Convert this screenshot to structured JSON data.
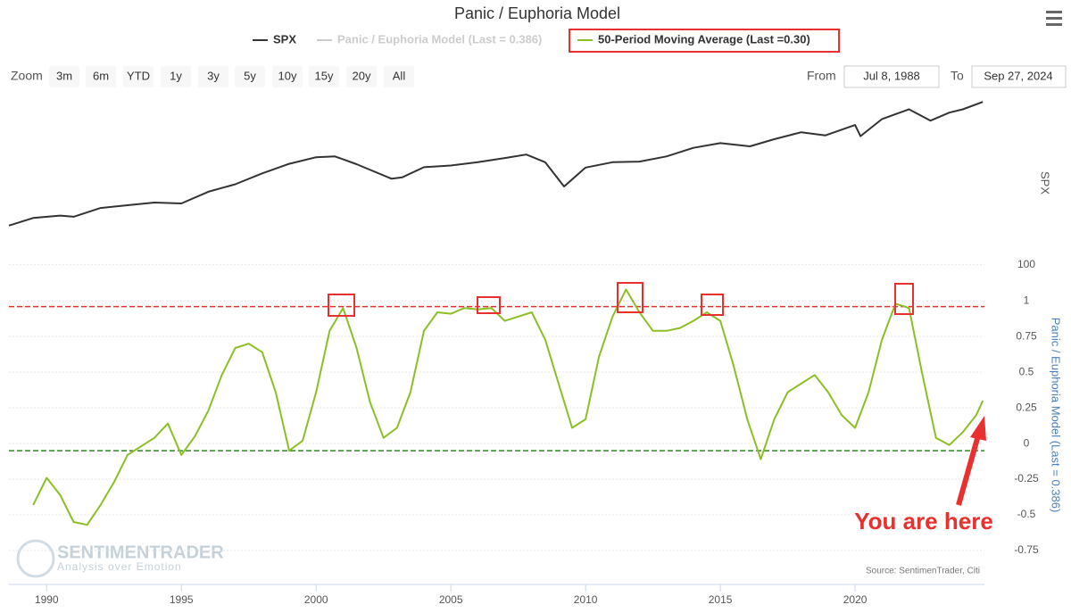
{
  "title": "Panic / Euphoria Model",
  "controls": {
    "zoom_label": "Zoom",
    "zoom_buttons": [
      "3m",
      "6m",
      "YTD",
      "1y",
      "3y",
      "5y",
      "10y",
      "15y",
      "20y",
      "All"
    ],
    "from_label": "From",
    "from": "Jul 8, 1988",
    "to_label": "To",
    "to": "Sep 27, 2024"
  },
  "watermark": {
    "name": "SENTIMENTRADER",
    "tagline": "Analysis over Emotion"
  },
  "chart_data": [
    {
      "type": "line",
      "y_axis_title": "SPX",
      "log_scale": true,
      "grid": true,
      "xlim": [
        1988.6,
        2024.8
      ],
      "ylim": [
        93,
        6300
      ],
      "yticks": [
        100
      ],
      "x": [
        1988.6,
        1989.5,
        1990.5,
        1991,
        1992,
        1993,
        1994,
        1995,
        1996,
        1997,
        1998,
        1999,
        2000,
        2000.7,
        2001.5,
        2002.8,
        2003.2,
        2004,
        2005,
        2006,
        2007,
        2007.8,
        2008.5,
        2009.2,
        2010,
        2011,
        2012,
        2013,
        2014,
        2015,
        2016.1,
        2017,
        2018,
        2018.9,
        2020,
        2020.2,
        2021,
        2022,
        2022.8,
        2023.5,
        2024,
        2024.74
      ],
      "series": [
        {
          "name": "SPX",
          "color": "#333333",
          "values": [
            265,
            320,
            340,
            330,
            410,
            440,
            470,
            460,
            615,
            740,
            970,
            1230,
            1450,
            1480,
            1220,
            850,
            880,
            1130,
            1180,
            1280,
            1420,
            1550,
            1280,
            700,
            1120,
            1280,
            1300,
            1480,
            1830,
            2060,
            1900,
            2270,
            2700,
            2500,
            3230,
            2450,
            3750,
            4770,
            3600,
            4400,
            4770,
            5740
          ]
        }
      ]
    },
    {
      "type": "line",
      "y_axis_title": "Panic / Euphoria Model (Last = 0.386)",
      "grid": true,
      "xlim": [
        1988.6,
        2024.8
      ],
      "xticks": [
        1990,
        1995,
        2000,
        2005,
        2010,
        2015,
        2020
      ],
      "ylim": [
        -1,
        1.22
      ],
      "yticks": [
        1,
        0.75,
        0.5,
        0.25,
        0,
        -0.25,
        -0.5,
        -0.75
      ],
      "reference_lines": [
        {
          "value": 0.96,
          "color": "#e8312f"
        },
        {
          "value": -0.05,
          "color": "#2e8b22"
        }
      ],
      "x": [
        1989.5,
        1990,
        1990.5,
        1991,
        1991.5,
        1992,
        1992.5,
        1993,
        1993.5,
        1994,
        1994.5,
        1995,
        1995.5,
        1996,
        1996.5,
        1997,
        1997.5,
        1998,
        1998.5,
        1999,
        1999.5,
        2000,
        2000.5,
        2001,
        2001.5,
        2002,
        2002.5,
        2003,
        2003.5,
        2004,
        2004.5,
        2005,
        2005.5,
        2006,
        2006.5,
        2007,
        2007.5,
        2008,
        2008.5,
        2009,
        2009.5,
        2010,
        2010.5,
        2011,
        2011.5,
        2012,
        2012.5,
        2013,
        2013.5,
        2014,
        2014.5,
        2015,
        2015.5,
        2016,
        2016.5,
        2017,
        2017.5,
        2018,
        2018.5,
        2019,
        2019.5,
        2020,
        2020.5,
        2021,
        2021.5,
        2022,
        2022.5,
        2023,
        2023.5,
        2024,
        2024.5,
        2024.74
      ],
      "series": [
        {
          "name": "Panic / Euphoria Model (Last = 0.386)",
          "color": "#cccccc",
          "visible": false
        },
        {
          "name": "50-Period Moving Average (Last =0.30)",
          "color": "#8cbf26",
          "values": [
            -0.43,
            -0.24,
            -0.36,
            -0.55,
            -0.57,
            -0.43,
            -0.27,
            -0.08,
            -0.02,
            0.04,
            0.14,
            -0.08,
            0.05,
            0.23,
            0.48,
            0.67,
            0.7,
            0.64,
            0.36,
            -0.05,
            0.02,
            0.36,
            0.79,
            0.95,
            0.67,
            0.29,
            0.04,
            0.11,
            0.36,
            0.79,
            0.92,
            0.91,
            0.95,
            0.94,
            0.95,
            0.86,
            0.89,
            0.92,
            0.73,
            0.42,
            0.11,
            0.17,
            0.61,
            0.89,
            1.08,
            0.92,
            0.79,
            0.79,
            0.81,
            0.86,
            0.92,
            0.86,
            0.54,
            0.17,
            -0.11,
            0.17,
            0.36,
            0.42,
            0.48,
            0.36,
            0.2,
            0.11,
            0.36,
            0.73,
            0.98,
            0.95,
            0.48,
            0.04,
            -0.01,
            0.08,
            0.2,
            0.3
          ]
        }
      ],
      "source": "Source: SentimenTrader, Citi",
      "annotation": "You are here"
    }
  ]
}
